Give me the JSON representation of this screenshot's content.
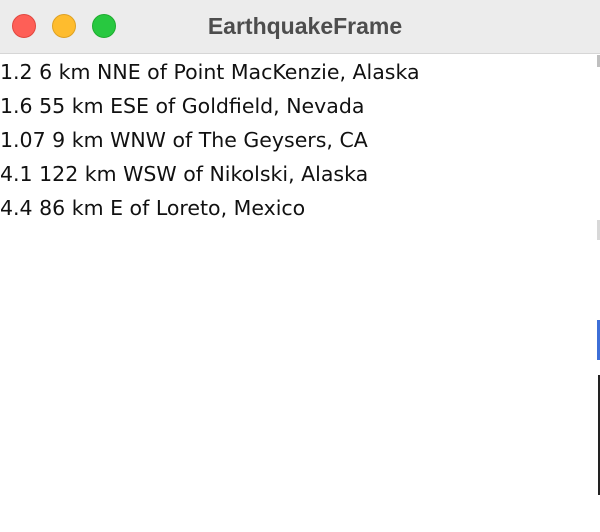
{
  "window": {
    "title": "EarthquakeFrame"
  },
  "earthquakes": [
    {
      "text": "1.2 6 km NNE of Point MacKenzie, Alaska"
    },
    {
      "text": "1.6 55 km ESE of Goldfield, Nevada"
    },
    {
      "text": "1.07 9 km WNW of The Geysers, CA"
    },
    {
      "text": "4.1 122 km WSW of Nikolski, Alaska"
    },
    {
      "text": "4.4 86 km E of Loreto, Mexico"
    }
  ],
  "colors": {
    "close": "#fe5f57",
    "minimize": "#febc2e",
    "zoom": "#28c840",
    "titlebar": "#ececec",
    "background": "#ffffff"
  }
}
